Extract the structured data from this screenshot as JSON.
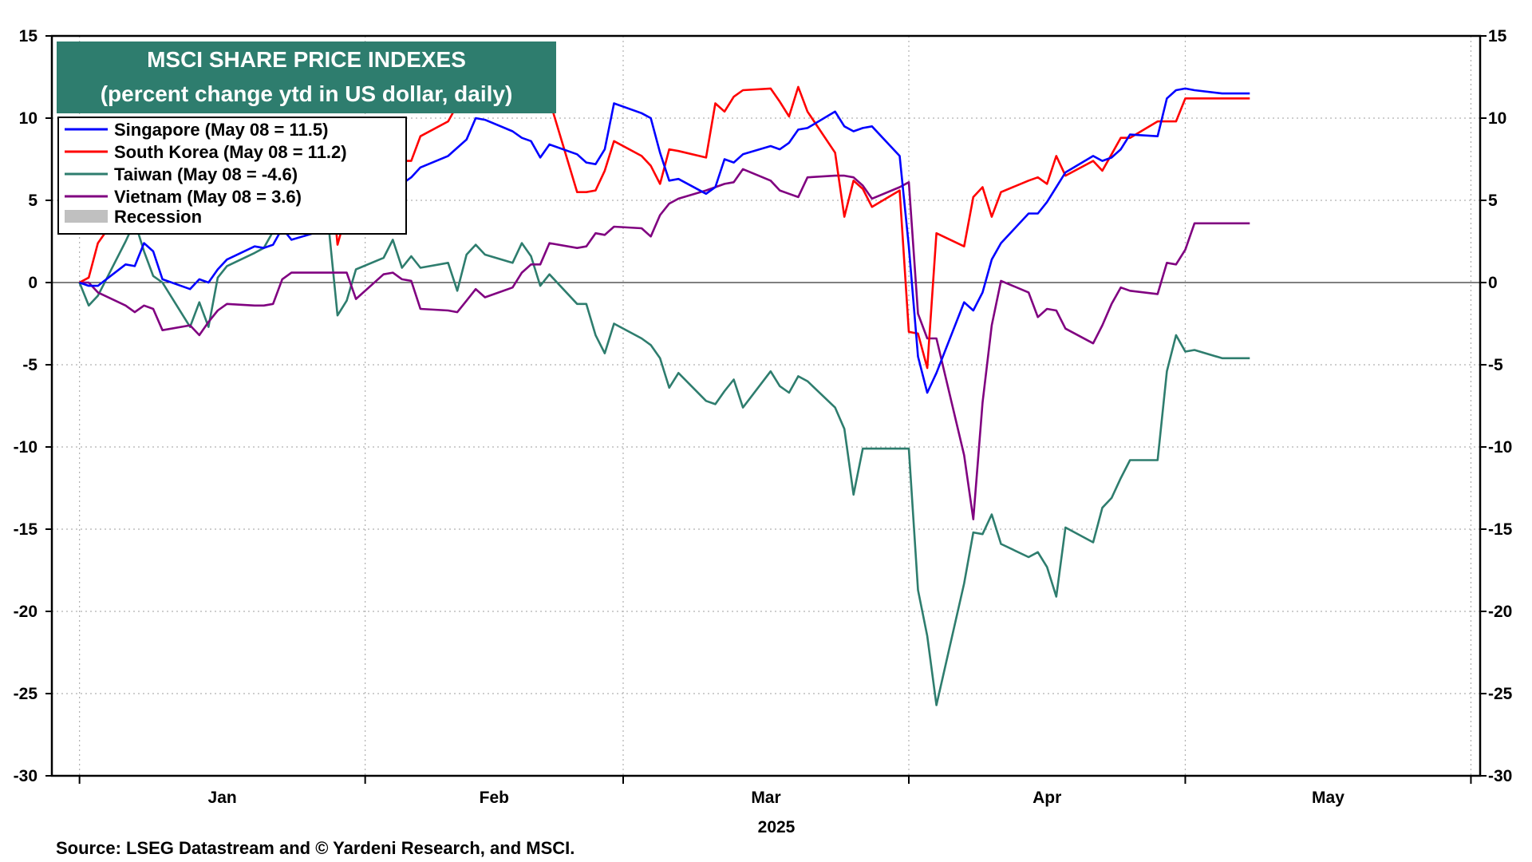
{
  "chart_data": {
    "type": "line",
    "title": "MSCI SHARE PRICE INDEXES",
    "subtitle": "(percent change ytd in US dollar, daily)",
    "source": "Source: LSEG Datastream and © Yardeni Research, and MSCI.",
    "year_label": "2025",
    "ylim": [
      -30,
      15
    ],
    "y_ticks": [
      "15",
      "10",
      "5",
      "0",
      "-5",
      "-10",
      "-15",
      "-20",
      "-25",
      "-30"
    ],
    "x_months": [
      "Jan",
      "Feb",
      "Mar",
      "Apr",
      "May"
    ],
    "grid": true,
    "legend_position": "top-left",
    "legend": [
      {
        "label": "Singapore (May 08 = 11.5)",
        "color": "#0000ff"
      },
      {
        "label": "South Korea (May 08 = 11.2)",
        "color": "#ff0000"
      },
      {
        "label": "Taiwan (May 08 = -4.6)",
        "color": "#2e7d6e"
      },
      {
        "label": "Vietnam (May 08 = 3.6)",
        "color": "#800080"
      },
      {
        "label": "Recession",
        "color": "#c0c0c0"
      }
    ],
    "x": [
      "2025-01-01",
      "2025-01-02",
      "2025-01-03",
      "2025-01-06",
      "2025-01-07",
      "2025-01-08",
      "2025-01-09",
      "2025-01-10",
      "2025-01-13",
      "2025-01-14",
      "2025-01-15",
      "2025-01-16",
      "2025-01-17",
      "2025-01-20",
      "2025-01-21",
      "2025-01-22",
      "2025-01-23",
      "2025-01-24",
      "2025-01-27",
      "2025-01-28",
      "2025-01-29",
      "2025-01-30",
      "2025-01-31",
      "2025-02-03",
      "2025-02-04",
      "2025-02-05",
      "2025-02-06",
      "2025-02-07",
      "2025-02-10",
      "2025-02-11",
      "2025-02-12",
      "2025-02-13",
      "2025-02-14",
      "2025-02-17",
      "2025-02-18",
      "2025-02-19",
      "2025-02-20",
      "2025-02-21",
      "2025-02-24",
      "2025-02-25",
      "2025-02-26",
      "2025-02-27",
      "2025-02-28",
      "2025-03-03",
      "2025-03-04",
      "2025-03-05",
      "2025-03-06",
      "2025-03-07",
      "2025-03-10",
      "2025-03-11",
      "2025-03-12",
      "2025-03-13",
      "2025-03-14",
      "2025-03-17",
      "2025-03-18",
      "2025-03-19",
      "2025-03-20",
      "2025-03-21",
      "2025-03-24",
      "2025-03-25",
      "2025-03-26",
      "2025-03-27",
      "2025-03-28",
      "2025-03-31",
      "2025-04-01",
      "2025-04-02",
      "2025-04-03",
      "2025-04-04",
      "2025-04-07",
      "2025-04-08",
      "2025-04-09",
      "2025-04-10",
      "2025-04-11",
      "2025-04-14",
      "2025-04-15",
      "2025-04-16",
      "2025-04-17",
      "2025-04-18",
      "2025-04-21",
      "2025-04-22",
      "2025-04-23",
      "2025-04-24",
      "2025-04-25",
      "2025-04-28",
      "2025-04-29",
      "2025-04-30",
      "2025-05-01",
      "2025-05-02",
      "2025-05-05",
      "2025-05-06",
      "2025-05-07",
      "2025-05-08"
    ],
    "series": [
      {
        "name": "Singapore (May 08 = 11.5)",
        "color": "#0000ff",
        "values": [
          0,
          -0.2,
          -0.2,
          1.1,
          1.0,
          2.4,
          1.9,
          0.2,
          -0.4,
          0.2,
          0,
          0.8,
          1.4,
          2.2,
          2.1,
          2.3,
          3.3,
          2.6,
          3.1,
          3.5,
          4.4,
          4.5,
          3.6,
          4.5,
          5.3,
          6.0,
          6.4,
          7.0,
          7.7,
          8.2,
          8.7,
          10.0,
          9.9,
          9.2,
          8.8,
          8.6,
          7.6,
          8.4,
          7.8,
          7.3,
          7.2,
          8.1,
          10.9,
          10.3,
          10.0,
          7.9,
          6.2,
          6.3,
          5.4,
          5.8,
          7.5,
          7.3,
          7.8,
          8.3,
          8.1,
          8.5,
          9.3,
          9.4,
          10.4,
          9.5,
          9.2,
          9.4,
          9.5,
          7.7,
          2.2,
          -4.5,
          -6.7,
          -5.5,
          -1.2,
          -1.7,
          -0.6,
          1.4,
          2.4,
          4.2,
          4.2,
          4.9,
          5.8,
          6.7,
          7.7,
          7.4,
          7.6,
          8.1,
          9.0,
          8.9,
          11.2,
          11.7,
          11.8,
          11.7,
          11.5,
          11.5,
          11.5,
          11.5
        ]
      },
      {
        "name": "South Korea (May 08 = 11.2)",
        "color": "#ff0000",
        "values": [
          0,
          0.3,
          2.4,
          4.8,
          4.9,
          5.2,
          5.6,
          5.8,
          5.7,
          6.0,
          6.2,
          6.5,
          6.8,
          7.0,
          7.2,
          7.5,
          7.8,
          8.0,
          8.2,
          8.3,
          2.3,
          4.3,
          7.6,
          6.8,
          6.8,
          7.4,
          7.4,
          8.9,
          9.8,
          10.8,
          13.2,
          13.7,
          13.7,
          13.6,
          13.5,
          12.4,
          12.6,
          11.1,
          5.5,
          5.5,
          5.6,
          6.8,
          8.6,
          7.7,
          7.1,
          6.0,
          8.1,
          8.0,
          7.6,
          10.9,
          10.4,
          11.3,
          11.7,
          11.8,
          11.0,
          10.1,
          11.9,
          10.4,
          7.9,
          4.0,
          6.2,
          5.7,
          4.6,
          5.6,
          -3.0,
          -3.1,
          -5.2,
          3.0,
          2.2,
          5.2,
          5.8,
          4.0,
          5.5,
          6.2,
          6.4,
          6.0,
          7.7,
          6.5,
          7.4,
          6.8,
          7.8,
          8.8,
          8.8,
          9.8,
          9.8,
          9.8,
          11.2,
          11.2,
          11.2,
          11.2,
          11.2,
          11.2
        ]
      },
      {
        "name": "Taiwan (May 08 = -4.6)",
        "color": "#2e7d6e",
        "values": [
          0,
          -1.4,
          -0.8,
          2.5,
          3.7,
          1.9,
          0.4,
          0,
          -2.7,
          -1.2,
          -2.7,
          0.3,
          1.0,
          1.8,
          2.1,
          3.1,
          3.1,
          3.6,
          3.6,
          3.6,
          -2.0,
          -1.1,
          0.8,
          1.5,
          2.6,
          0.9,
          1.6,
          0.9,
          1.2,
          -0.5,
          1.7,
          2.3,
          1.7,
          1.2,
          2.4,
          1.6,
          -0.2,
          0.5,
          -1.3,
          -1.3,
          -3.2,
          -4.3,
          -2.5,
          -3.4,
          -3.8,
          -4.6,
          -6.4,
          -5.5,
          -7.2,
          -7.4,
          -6.6,
          -5.9,
          -7.6,
          -5.4,
          -6.3,
          -6.7,
          -5.7,
          -6.0,
          -7.6,
          -8.9,
          -12.9,
          -10.1,
          -10.1,
          -10.1,
          -10.1,
          -18.7,
          -21.5,
          -25.7,
          -18.3,
          -15.2,
          -15.3,
          -14.1,
          -15.9,
          -16.7,
          -16.4,
          -17.3,
          -19.1,
          -14.9,
          -15.8,
          -13.7,
          -13.1,
          -11.9,
          -10.8,
          -10.8,
          -5.4,
          -3.2,
          -4.2,
          -4.1,
          -4.6,
          -4.6,
          -4.6,
          -4.6
        ]
      },
      {
        "name": "Vietnam (May 08 = 3.6)",
        "color": "#800080",
        "values": [
          0,
          0,
          -0.6,
          -1.4,
          -1.8,
          -1.4,
          -1.6,
          -2.9,
          -2.6,
          -3.2,
          -2.4,
          -1.7,
          -1.3,
          -1.4,
          -1.4,
          -1.3,
          0.2,
          0.6,
          0.6,
          0.6,
          0.6,
          0.6,
          -1.0,
          0.5,
          0.6,
          0.2,
          0.1,
          -1.6,
          -1.7,
          -1.8,
          -1.1,
          -0.4,
          -0.9,
          -0.3,
          0.6,
          1.1,
          1.1,
          2.4,
          2.1,
          2.2,
          3.0,
          2.9,
          3.4,
          3.3,
          2.8,
          4.1,
          4.8,
          5.1,
          5.6,
          5.8,
          6.0,
          6.1,
          6.9,
          6.2,
          5.6,
          5.4,
          5.2,
          6.4,
          6.5,
          6.5,
          6.4,
          5.9,
          5.1,
          5.8,
          6.1,
          -1.9,
          -3.4,
          -3.4,
          -10.5,
          -14.4,
          -7.3,
          -2.6,
          0.1,
          -0.6,
          -2.1,
          -1.6,
          -1.7,
          -2.8,
          -3.7,
          -2.6,
          -1.3,
          -0.3,
          -0.5,
          -0.7,
          1.2,
          1.1,
          2.0,
          3.6,
          3.6,
          3.6,
          3.6,
          3.6
        ]
      }
    ]
  }
}
